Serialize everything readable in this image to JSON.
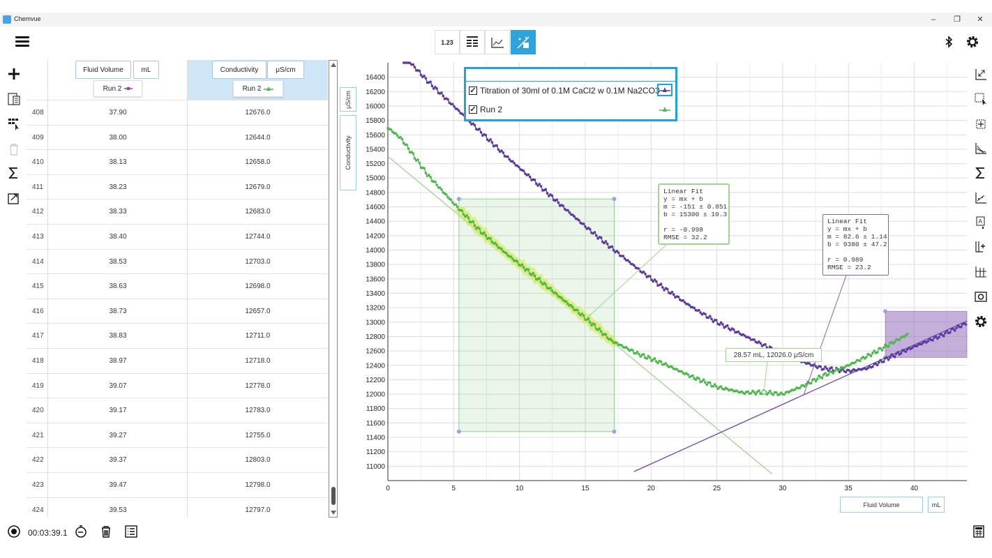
{
  "window": {
    "title": "Chemvue",
    "minimize": "–",
    "restore": "❐",
    "close": "✕"
  },
  "toolbar": {
    "numeric_label": "1.23"
  },
  "table": {
    "columns": [
      {
        "name": "Fluid Volume",
        "unit": "mL",
        "run": "Run 2"
      },
      {
        "name": "Conductivity",
        "unit": "μS/cm",
        "run": "Run 2"
      }
    ],
    "rows": [
      {
        "idx": "408",
        "vol": "37.90",
        "cond": "12676.0"
      },
      {
        "idx": "409",
        "vol": "38.00",
        "cond": "12644.0"
      },
      {
        "idx": "410",
        "vol": "38.13",
        "cond": "12658.0"
      },
      {
        "idx": "411",
        "vol": "38.23",
        "cond": "12679.0"
      },
      {
        "idx": "412",
        "vol": "38.33",
        "cond": "12683.0"
      },
      {
        "idx": "413",
        "vol": "38.40",
        "cond": "12744.0"
      },
      {
        "idx": "414",
        "vol": "38.53",
        "cond": "12703.0"
      },
      {
        "idx": "415",
        "vol": "38.63",
        "cond": "12698.0"
      },
      {
        "idx": "416",
        "vol": "38.73",
        "cond": "12657.0"
      },
      {
        "idx": "417",
        "vol": "38.83",
        "cond": "12711.0"
      },
      {
        "idx": "418",
        "vol": "38.97",
        "cond": "12718.0"
      },
      {
        "idx": "419",
        "vol": "39.07",
        "cond": "12778.0"
      },
      {
        "idx": "420",
        "vol": "39.17",
        "cond": "12783.0"
      },
      {
        "idx": "421",
        "vol": "39.27",
        "cond": "12755.0"
      },
      {
        "idx": "422",
        "vol": "39.37",
        "cond": "12803.0"
      },
      {
        "idx": "423",
        "vol": "39.47",
        "cond": "12798.0"
      },
      {
        "idx": "424",
        "vol": "39.53",
        "cond": "12797.0"
      }
    ]
  },
  "graph": {
    "y_unit": "μS/cm",
    "y_name": "Conductivity",
    "x_name": "Fluid Volume",
    "x_unit": "mL",
    "legend": [
      {
        "label": "Titration of 30ml of 0.1M CaCl2 w 0.1M Na2CO3",
        "color": "#5b3a9e",
        "checked": "✓"
      },
      {
        "label": "Run 2",
        "color": "#4cb84c",
        "checked": "✓"
      }
    ],
    "fit_green": "Linear Fit\ny = mx + b\nm = -151 ± 0.851\nb = 15300 ± 10.3\n\nr = -0.998\nRMSE = 32.2",
    "fit_purple": "Linear Fit\ny = mx + b\nm = 82.6 ± 1.14\nb = 9380 ± 47.2\n\nr = 0.989\nRMSE = 23.2",
    "cursor_readout": "28.57 mL, 12026.0 μS/cm"
  },
  "chart_data": {
    "type": "scatter",
    "xlim": [
      0,
      44
    ],
    "ylim": [
      10800,
      16600
    ],
    "x_ticks": [
      0,
      5,
      10,
      15,
      20,
      25,
      30,
      35,
      40
    ],
    "y_ticks": [
      11000,
      11200,
      11400,
      11600,
      11800,
      12000,
      12200,
      12400,
      12600,
      12800,
      13000,
      13200,
      13400,
      13600,
      13800,
      14000,
      14200,
      14400,
      14600,
      14800,
      15000,
      15200,
      15400,
      15600,
      15800,
      16000,
      16200,
      16400
    ],
    "grid": true,
    "series": [
      {
        "name": "Titration of 30ml of 0.1M CaCl2 w 0.1M Na2CO3",
        "color": "#5b3a9e",
        "x": [
          1.2,
          3,
          5,
          7,
          9,
          11,
          13,
          15,
          17,
          19,
          21,
          23,
          25,
          27,
          29,
          31,
          33,
          35,
          36.5,
          38,
          40,
          42,
          44
        ],
        "y": [
          16700,
          16350,
          16000,
          15650,
          15300,
          14980,
          14650,
          14330,
          14030,
          13740,
          13470,
          13220,
          13000,
          12820,
          12640,
          12480,
          12360,
          12320,
          12360,
          12500,
          12660,
          12810,
          12990
        ]
      },
      {
        "name": "Run 2",
        "color": "#4cb84c",
        "x": [
          0,
          1,
          2,
          3,
          4,
          5,
          7,
          9,
          11,
          13,
          15,
          17,
          19,
          21,
          23,
          25,
          27,
          28.6,
          30,
          31.5,
          33,
          35,
          37,
          39.5
        ],
        "y": [
          15700,
          15550,
          15300,
          15050,
          14850,
          14650,
          14270,
          13950,
          13660,
          13360,
          13060,
          12740,
          12560,
          12420,
          12250,
          12100,
          12020,
          12026,
          12000,
          12110,
          12250,
          12400,
          12580,
          12830
        ]
      }
    ],
    "fits": [
      {
        "color": "#9ed58f",
        "m": -151,
        "b": 15300,
        "x_range": [
          0,
          29.2
        ]
      },
      {
        "color": "#6b4aa8",
        "m": 82.6,
        "b": 9380,
        "x_range": [
          18.7,
          44
        ]
      }
    ],
    "selections": [
      {
        "color": "#4cb84c",
        "x_range": [
          5.4,
          17.2
        ],
        "y_range": [
          11480,
          14710
        ]
      },
      {
        "color": "#8a5fb8",
        "x_range": [
          37.8,
          44
        ],
        "y_range": [
          12510,
          13150
        ]
      }
    ]
  }
}
